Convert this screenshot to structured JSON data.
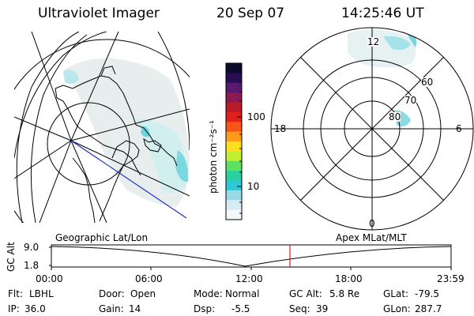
{
  "header": {
    "title": "Ultraviolet Imager",
    "date": "20 Sep 07",
    "time": "14:25:46 UT"
  },
  "geo_panel": {
    "label": "Geographic Lat/Lon"
  },
  "polar_panel": {
    "label": "Apex MLat/MLT",
    "mlt_labels": [
      "12",
      "18",
      "6",
      "0"
    ],
    "lat_labels": [
      "60",
      "70",
      "80"
    ]
  },
  "colorbar": {
    "unit_label": "photon cm⁻²s⁻¹",
    "ticks": [
      "100",
      "10"
    ],
    "colors": [
      "#0b0b2e",
      "#2a0c52",
      "#5a1870",
      "#8a1a50",
      "#b81a28",
      "#e0201a",
      "#f5551a",
      "#ff9b1a",
      "#ffe020",
      "#c0f030",
      "#60e060",
      "#2ad0a0",
      "#30c8d8",
      "#9ad8e6",
      "#d6ecf2",
      "#f4f8fa"
    ]
  },
  "timeline": {
    "ylabel": "GC Alt",
    "y_ticks": [
      "9.0",
      "1.8"
    ],
    "x_ticks": [
      "00:00",
      "06:00",
      "12:00",
      "18:00",
      "23:59"
    ],
    "marker_time": "14:25:46"
  },
  "status": {
    "row1": [
      {
        "key": "Flt:",
        "value": "LBHL"
      },
      {
        "key": "Door:",
        "value": "Open"
      },
      {
        "key": "Mode:",
        "value": "Normal"
      },
      {
        "key": "GC Alt:",
        "value": "5.8 Re"
      },
      {
        "key": "GLat:",
        "value": "-79.5"
      }
    ],
    "row2": [
      {
        "key": "IP:",
        "value": "36.0"
      },
      {
        "key": "Gain:",
        "value": "14"
      },
      {
        "key": "Dsp:",
        "value": "-5.5"
      },
      {
        "key": "Seq:",
        "value": "39"
      },
      {
        "key": "GLon:",
        "value": "287.7"
      }
    ]
  }
}
